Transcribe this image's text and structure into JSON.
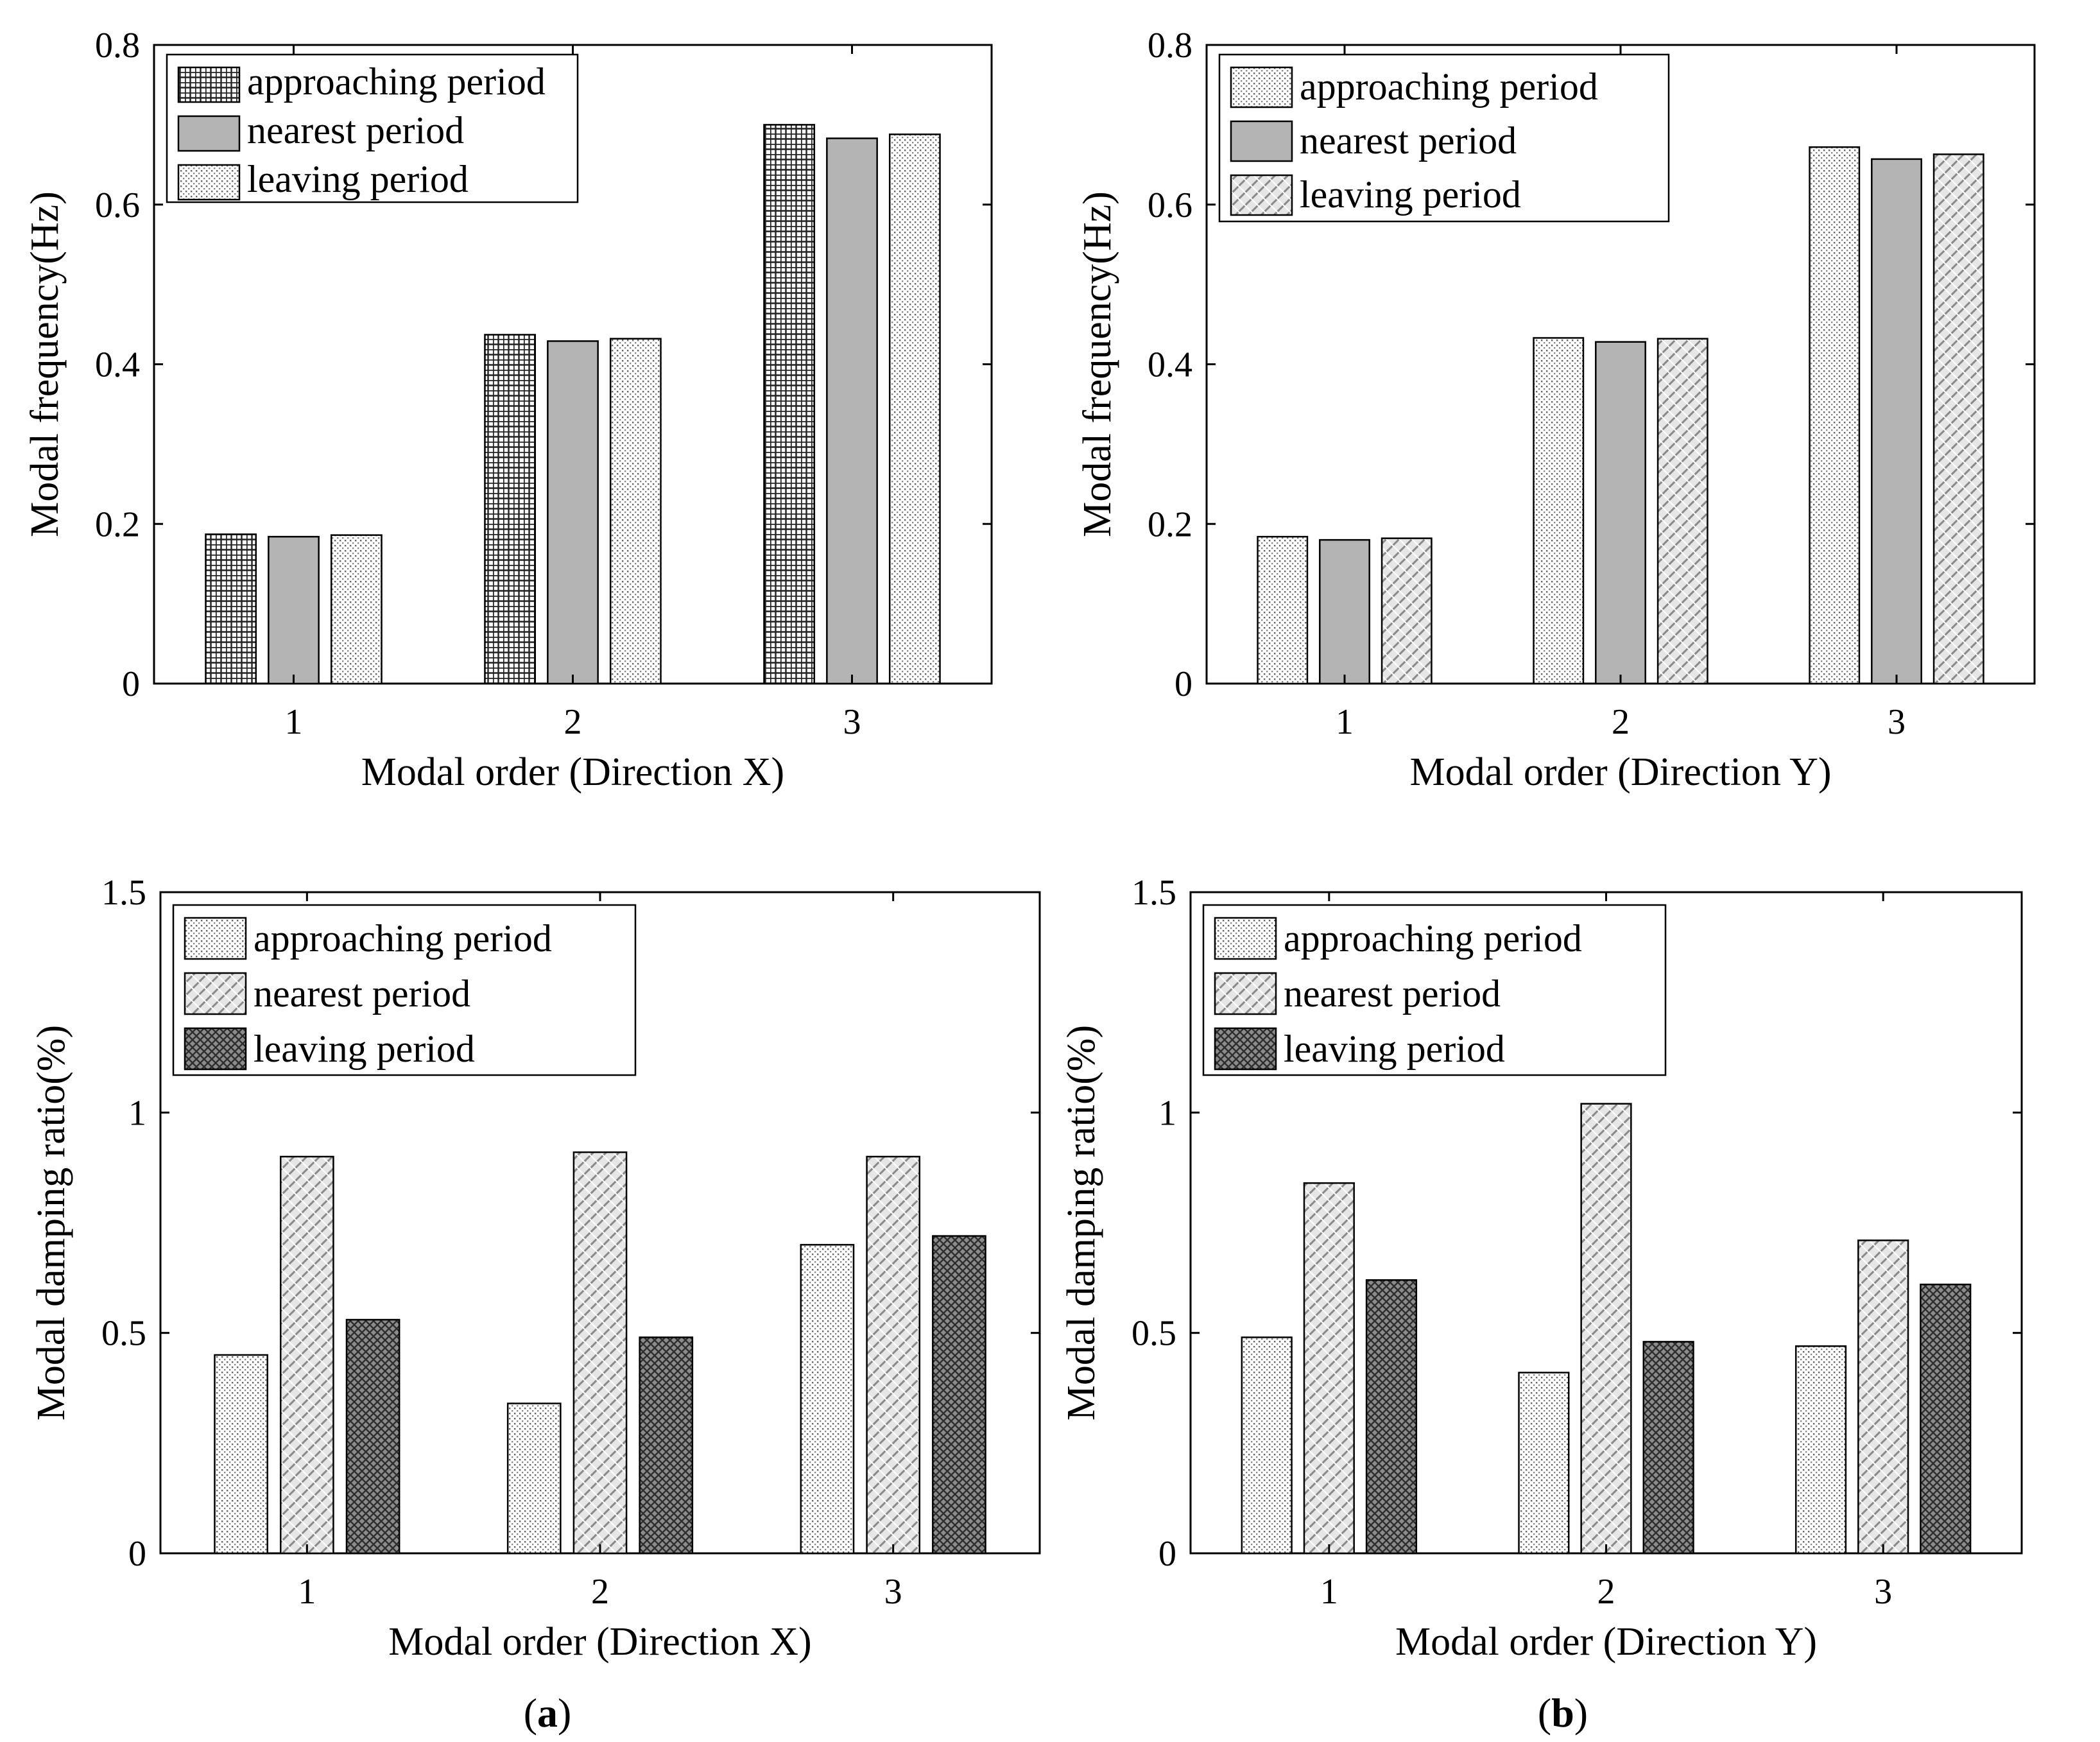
{
  "chart_data": [
    {
      "type": "bar",
      "panel": "top-left",
      "categories": [
        "1",
        "2",
        "3"
      ],
      "series": [
        {
          "name": "approaching period",
          "values": [
            0.187,
            0.437,
            0.7
          ],
          "pattern": "grid"
        },
        {
          "name": "nearest period",
          "values": [
            0.184,
            0.429,
            0.683
          ],
          "pattern": "solid"
        },
        {
          "name": "leaving period",
          "values": [
            0.186,
            0.432,
            0.688
          ],
          "pattern": "dots"
        }
      ],
      "xlabel": "Modal order  (Direction X)",
      "ylabel": "Modal frequency(Hz)",
      "ylim": [
        0,
        0.8
      ],
      "yticks": [
        0,
        0.2,
        0.4,
        0.6,
        0.8
      ],
      "ytick_labels": [
        "0",
        "0.2",
        "0.4",
        "0.6",
        "0.8"
      ],
      "legend_placement": "top-left",
      "grid": false
    },
    {
      "type": "bar",
      "panel": "top-right",
      "categories": [
        "1",
        "2",
        "3"
      ],
      "series": [
        {
          "name": "approaching period",
          "values": [
            0.184,
            0.433,
            0.672
          ],
          "pattern": "dots"
        },
        {
          "name": "nearest period",
          "values": [
            0.18,
            0.428,
            0.657
          ],
          "pattern": "solid"
        },
        {
          "name": "leaving period",
          "values": [
            0.182,
            0.432,
            0.663
          ],
          "pattern": "diagonal"
        }
      ],
      "xlabel": "Modal order  (Direction Y)",
      "ylabel": "Modal frequency(Hz)",
      "ylim": [
        0,
        0.8
      ],
      "yticks": [
        0,
        0.2,
        0.4,
        0.6,
        0.8
      ],
      "ytick_labels": [
        "0",
        "0.2",
        "0.4",
        "0.6",
        "0.8"
      ],
      "legend_placement": "top-left",
      "grid": false
    },
    {
      "type": "bar",
      "panel": "bottom-left",
      "categories": [
        "1",
        "2",
        "3"
      ],
      "series": [
        {
          "name": "approaching period",
          "values": [
            0.45,
            0.34,
            0.7
          ],
          "pattern": "dots"
        },
        {
          "name": "nearest period",
          "values": [
            0.9,
            0.91,
            0.9
          ],
          "pattern": "diagonal"
        },
        {
          "name": "leaving period",
          "values": [
            0.53,
            0.49,
            0.72
          ],
          "pattern": "crosshatch"
        }
      ],
      "xlabel": "Modal order  (Direction X)",
      "ylabel": "Modal damping ratio(%)",
      "ylim": [
        0,
        1.5
      ],
      "yticks": [
        0,
        0.5,
        1,
        1.5
      ],
      "ytick_labels": [
        "0",
        "0.5",
        "1",
        "1.5"
      ],
      "legend_placement": "top-left",
      "grid": false
    },
    {
      "type": "bar",
      "panel": "bottom-right",
      "categories": [
        "1",
        "2",
        "3"
      ],
      "series": [
        {
          "name": "approaching period",
          "values": [
            0.49,
            0.41,
            0.47
          ],
          "pattern": "dots"
        },
        {
          "name": "nearest period",
          "values": [
            0.84,
            1.02,
            0.71
          ],
          "pattern": "diagonal"
        },
        {
          "name": "leaving period",
          "values": [
            0.62,
            0.48,
            0.61
          ],
          "pattern": "crosshatch"
        }
      ],
      "xlabel": "Modal order  (Direction Y)",
      "ylabel": "Modal damping ratio(%)",
      "ylim": [
        0,
        1.5
      ],
      "yticks": [
        0,
        0.5,
        1,
        1.5
      ],
      "ytick_labels": [
        "0",
        "0.5",
        "1",
        "1.5"
      ],
      "legend_placement": "top-left",
      "grid": false
    }
  ],
  "panel_labels": {
    "a": {
      "open": "(",
      "letter": "a",
      "close": ")"
    },
    "b": {
      "open": "(",
      "letter": "b",
      "close": ")"
    }
  }
}
